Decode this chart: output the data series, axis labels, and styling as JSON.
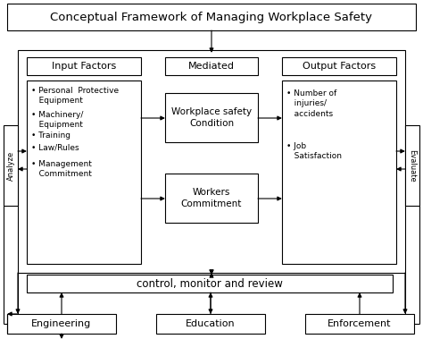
{
  "title": "Conceptual Framework of Managing Workplace Safety",
  "bg_color": "#ffffff",
  "border_color": "#000000",
  "text_color": "#000000",
  "input_factors_label": "Input Factors",
  "mediated_label": "Mediated",
  "output_factors_label": "Output Factors",
  "mediated_box1": "Workplace safety\nCondition",
  "mediated_box2": "Workers\nCommitment",
  "control_label": "control, monitor and review",
  "bottom_boxes": [
    "Engineering",
    "Education",
    "Enforcement"
  ],
  "analyze_label": "Analyze",
  "evaluate_label": "Evaluate",
  "font_size_title": 9.5,
  "font_size_label": 8.0,
  "font_size_med": 7.5,
  "font_size_input": 6.8,
  "font_size_side": 6.0,
  "font_size_bottom": 8.0,
  "font_size_ctrl": 8.5
}
